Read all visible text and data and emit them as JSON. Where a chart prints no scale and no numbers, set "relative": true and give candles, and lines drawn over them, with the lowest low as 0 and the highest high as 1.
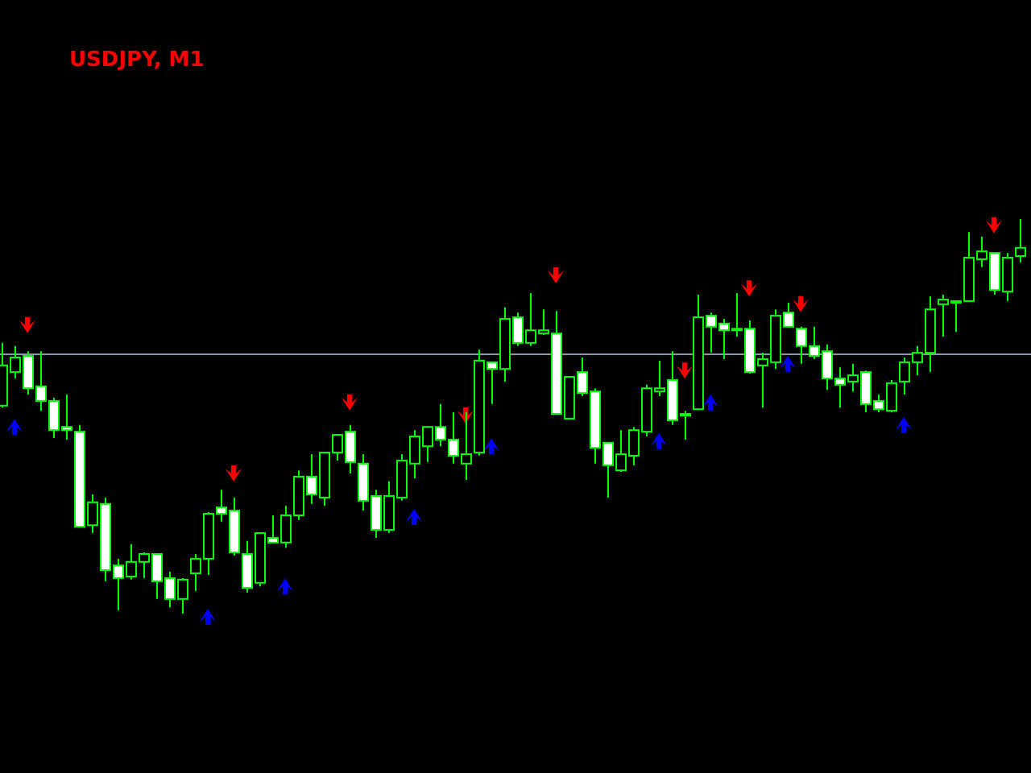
{
  "chart_data": {
    "type": "candlestick",
    "title": "USDJPY, M1",
    "relative": true,
    "color": "#00ff00",
    "categories": [
      null,
      null,
      null,
      null,
      null,
      null,
      null,
      null,
      null,
      null,
      null,
      null,
      null,
      null,
      null,
      null,
      null,
      null,
      null,
      null,
      null,
      null,
      null,
      null,
      null,
      null,
      null,
      null,
      null,
      null,
      null,
      null,
      null,
      null,
      null,
      null,
      null,
      null,
      null,
      null,
      null,
      null,
      null,
      null,
      null,
      null,
      null,
      null,
      null,
      null,
      null,
      null,
      null,
      null,
      null,
      null,
      null,
      null,
      null,
      null,
      null,
      null,
      null,
      null,
      null,
      null,
      null,
      null,
      null,
      null,
      null,
      null,
      null,
      null,
      null,
      null,
      null,
      null,
      null,
      null
    ],
    "ohlc": [
      [
        0.527,
        0.686,
        0.522,
        0.629
      ],
      [
        0.612,
        0.678,
        0.596,
        0.649
      ],
      [
        0.653,
        0.665,
        0.555,
        0.571
      ],
      [
        0.576,
        0.665,
        0.514,
        0.539
      ],
      [
        0.539,
        0.547,
        0.445,
        0.465
      ],
      [
        0.473,
        0.555,
        0.441,
        0.465
      ],
      [
        0.461,
        0.478,
        0.22,
        0.22
      ],
      [
        0.224,
        0.302,
        0.204,
        0.282
      ],
      [
        0.278,
        0.294,
        0.082,
        0.11
      ],
      [
        0.122,
        0.139,
        0.008,
        0.09
      ],
      [
        0.094,
        0.176,
        0.086,
        0.131
      ],
      [
        0.131,
        0.155,
        0.09,
        0.151
      ],
      [
        0.151,
        0.151,
        0.037,
        0.082
      ],
      [
        0.09,
        0.106,
        0.016,
        0.037
      ],
      [
        0.037,
        0.09,
        0,
        0.086
      ],
      [
        0.102,
        0.151,
        0.057,
        0.139
      ],
      [
        0.139,
        0.257,
        0.098,
        0.253
      ],
      [
        0.269,
        0.314,
        0.233,
        0.253
      ],
      [
        0.261,
        0.294,
        0.147,
        0.155
      ],
      [
        0.151,
        0.184,
        0.053,
        0.065
      ],
      [
        0.078,
        0.204,
        0.069,
        0.204
      ],
      [
        0.192,
        0.249,
        0.18,
        0.18
      ],
      [
        0.18,
        0.273,
        0.167,
        0.249
      ],
      [
        0.249,
        0.363,
        0.237,
        0.347
      ],
      [
        0.347,
        0.404,
        0.278,
        0.302
      ],
      [
        0.294,
        0.408,
        0.273,
        0.408
      ],
      [
        0.408,
        0.453,
        0.388,
        0.453
      ],
      [
        0.461,
        0.478,
        0.355,
        0.384
      ],
      [
        0.38,
        0.404,
        0.261,
        0.286
      ],
      [
        0.298,
        0.314,
        0.192,
        0.212
      ],
      [
        0.212,
        0.335,
        0.204,
        0.298
      ],
      [
        0.294,
        0.404,
        0.286,
        0.388
      ],
      [
        0.38,
        0.465,
        0.343,
        0.449
      ],
      [
        0.424,
        0.473,
        0.384,
        0.473
      ],
      [
        0.473,
        0.531,
        0.424,
        0.441
      ],
      [
        0.441,
        0.51,
        0.38,
        0.4
      ],
      [
        0.38,
        0.51,
        0.339,
        0.404
      ],
      [
        0.408,
        0.669,
        0.4,
        0.641
      ],
      [
        0.637,
        0.637,
        0.531,
        0.62
      ],
      [
        0.62,
        0.776,
        0.588,
        0.747
      ],
      [
        0.751,
        0.763,
        0.678,
        0.686
      ],
      [
        0.686,
        0.812,
        0.678,
        0.718
      ],
      [
        0.71,
        0.771,
        0.706,
        0.718
      ],
      [
        0.71,
        0.767,
        0.506,
        0.506
      ],
      [
        0.494,
        0.6,
        0.494,
        0.6
      ],
      [
        0.612,
        0.649,
        0.551,
        0.559
      ],
      [
        0.563,
        0.571,
        0.38,
        0.42
      ],
      [
        0.433,
        0.433,
        0.294,
        0.376
      ],
      [
        0.363,
        0.465,
        0.359,
        0.404
      ],
      [
        0.4,
        0.473,
        0.376,
        0.465
      ],
      [
        0.461,
        0.58,
        0.449,
        0.571
      ],
      [
        0.563,
        0.641,
        0.551,
        0.571
      ],
      [
        0.592,
        0.665,
        0.478,
        0.49
      ],
      [
        0.506,
        0.514,
        0.441,
        0.506
      ],
      [
        0.518,
        0.808,
        0.518,
        0.751
      ],
      [
        0.755,
        0.763,
        0.661,
        0.727
      ],
      [
        0.735,
        0.747,
        0.645,
        0.718
      ],
      [
        0.722,
        0.812,
        0.702,
        0.722
      ],
      [
        0.722,
        0.743,
        0.608,
        0.612
      ],
      [
        0.629,
        0.661,
        0.522,
        0.645
      ],
      [
        0.637,
        0.771,
        0.62,
        0.755
      ],
      [
        0.763,
        0.788,
        0.727,
        0.727
      ],
      [
        0.722,
        0.727,
        0.633,
        0.678
      ],
      [
        0.678,
        0.727,
        0.645,
        0.653
      ],
      [
        0.665,
        0.682,
        0.567,
        0.596
      ],
      [
        0.596,
        0.624,
        0.522,
        0.58
      ],
      [
        0.588,
        0.633,
        0.563,
        0.604
      ],
      [
        0.612,
        0.616,
        0.51,
        0.531
      ],
      [
        0.539,
        0.555,
        0.51,
        0.518
      ],
      [
        0.514,
        0.592,
        0.51,
        0.584
      ],
      [
        0.588,
        0.649,
        0.555,
        0.637
      ],
      [
        0.637,
        0.678,
        0.604,
        0.661
      ],
      [
        0.661,
        0.804,
        0.612,
        0.771
      ],
      [
        0.784,
        0.808,
        0.702,
        0.796
      ],
      [
        0.792,
        0.792,
        0.714,
        0.792
      ],
      [
        0.792,
        0.967,
        0.792,
        0.902
      ],
      [
        0.898,
        0.955,
        0.878,
        0.918
      ],
      [
        0.914,
        0.914,
        0.808,
        0.82
      ],
      [
        0.816,
        0.914,
        0.792,
        0.902
      ],
      [
        0.906,
        1,
        0.89,
        0.927
      ]
    ],
    "series": [
      {
        "type": "scatter",
        "color": "#ff0000",
        "values": [
          null,
          null,
          0.731,
          null,
          null,
          null,
          null,
          null,
          null,
          null,
          null,
          null,
          null,
          null,
          null,
          null,
          null,
          null,
          0.355,
          null,
          null,
          null,
          null,
          null,
          null,
          null,
          null,
          0.535,
          null,
          null,
          null,
          null,
          null,
          null,
          null,
          null,
          0.502,
          null,
          null,
          null,
          null,
          null,
          null,
          0.857,
          null,
          null,
          null,
          null,
          null,
          null,
          null,
          null,
          null,
          0.616,
          null,
          null,
          null,
          null,
          0.824,
          null,
          null,
          null,
          0.784,
          null,
          null,
          null,
          null,
          null,
          null,
          null,
          null,
          null,
          null,
          null,
          null,
          null,
          null,
          0.984,
          null,
          null
        ]
      },
      {
        "type": "scatter",
        "color": "#0000ff",
        "values": [
          null,
          0.473,
          null,
          null,
          null,
          null,
          null,
          null,
          null,
          null,
          null,
          null,
          null,
          null,
          null,
          null,
          -0.008,
          null,
          null,
          null,
          null,
          null,
          0.069,
          null,
          null,
          null,
          null,
          null,
          null,
          null,
          null,
          null,
          0.245,
          null,
          null,
          null,
          null,
          null,
          0.424,
          null,
          null,
          null,
          null,
          null,
          null,
          null,
          null,
          null,
          null,
          null,
          null,
          0.437,
          null,
          null,
          null,
          0.535,
          null,
          null,
          null,
          null,
          null,
          0.633,
          null,
          null,
          null,
          null,
          null,
          null,
          null,
          null,
          0.478,
          null,
          null,
          null,
          null,
          null,
          null,
          null,
          null,
          null
        ]
      }
    ],
    "marker": "triangle",
    "ref_lines": [
      {
        "axis": "y",
        "value": 0.657,
        "color": "#8a9aaa"
      }
    ]
  }
}
